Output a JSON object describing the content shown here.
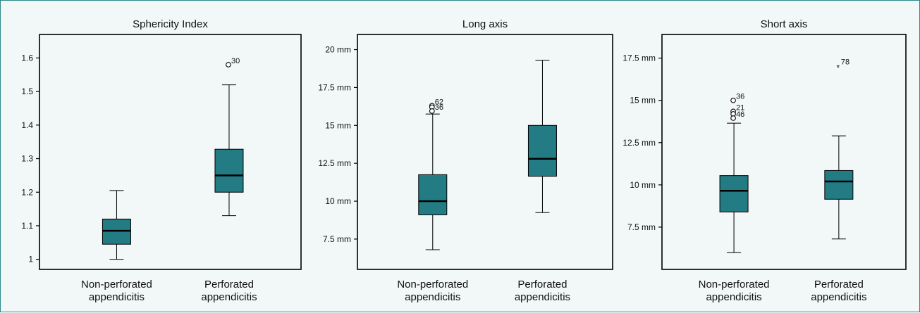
{
  "chart_data": [
    {
      "type": "box",
      "title": "Sphericity Index",
      "ylim": [
        0.97,
        1.67
      ],
      "yticks": [
        1,
        1.1,
        1.2,
        1.3,
        1.4,
        1.5,
        1.6
      ],
      "yticklabels": [
        "1",
        "1.1",
        "1.2",
        "1.3",
        "1.4",
        "1.5",
        "1.6"
      ],
      "categories": [
        [
          "Non-perforated",
          "appendicitis"
        ],
        [
          "Perforated",
          "appendicitis"
        ]
      ],
      "boxes": [
        {
          "whisker_low": 1.0,
          "q1": 1.045,
          "median": 1.085,
          "q3": 1.12,
          "whisker_high": 1.205,
          "outliers": []
        },
        {
          "whisker_low": 1.13,
          "q1": 1.2,
          "median": 1.25,
          "q3": 1.328,
          "whisker_high": 1.52,
          "outliers": [
            {
              "value": 1.58,
              "label": "30",
              "marker": "circle"
            }
          ]
        }
      ]
    },
    {
      "type": "box",
      "title": "Long axis",
      "ylim": [
        5.5,
        21.0
      ],
      "yticks": [
        7.5,
        10,
        12.5,
        15,
        17.5,
        20
      ],
      "yticklabels": [
        "7.5 mm",
        "10 mm",
        "12.5 mm",
        "15 mm",
        "17.5 mm",
        "20 mm"
      ],
      "categories": [
        [
          "Non-perforated",
          "appendicitis"
        ],
        [
          "Perforated",
          "appendicitis"
        ]
      ],
      "boxes": [
        {
          "whisker_low": 6.8,
          "q1": 9.1,
          "median": 10.0,
          "q3": 11.75,
          "whisker_high": 15.75,
          "outliers": [
            {
              "value": 16.3,
              "label": "62",
              "marker": "circle"
            },
            {
              "value": 16.2,
              "label": "",
              "marker": "circle"
            },
            {
              "value": 15.95,
              "label": "36",
              "marker": "circle"
            }
          ]
        },
        {
          "whisker_low": 9.25,
          "q1": 11.65,
          "median": 12.8,
          "q3": 15.0,
          "whisker_high": 19.3,
          "outliers": []
        }
      ]
    },
    {
      "type": "box",
      "title": "Short axis",
      "ylim": [
        5.0,
        18.9
      ],
      "yticks": [
        7.5,
        10,
        12.5,
        15,
        17.5
      ],
      "yticklabels": [
        "7.5 mm",
        "10 mm",
        "12.5 mm",
        "15 mm",
        "17.5 mm"
      ],
      "categories": [
        [
          "Non-perforated",
          "appendicitis"
        ],
        [
          "Perforated",
          "appendicitis"
        ]
      ],
      "boxes": [
        {
          "whisker_low": 6.0,
          "q1": 8.4,
          "median": 9.65,
          "q3": 10.55,
          "whisker_high": 13.65,
          "outliers": [
            {
              "value": 15.0,
              "label": "36",
              "marker": "circle"
            },
            {
              "value": 14.35,
              "label": "21",
              "marker": "circle"
            },
            {
              "value": 14.2,
              "label": "",
              "marker": "circle"
            },
            {
              "value": 13.95,
              "label": "46",
              "marker": "circle"
            }
          ]
        },
        {
          "whisker_low": 6.8,
          "q1": 9.15,
          "median": 10.2,
          "q3": 10.85,
          "whisker_high": 12.9,
          "outliers": [
            {
              "value": 17.05,
              "label": "78",
              "marker": "star"
            }
          ]
        }
      ]
    }
  ],
  "colors": {
    "box_fill": "#237b84",
    "median": "#000000",
    "frame_border": "#2a8a8a",
    "background": "#f2f7f7"
  }
}
